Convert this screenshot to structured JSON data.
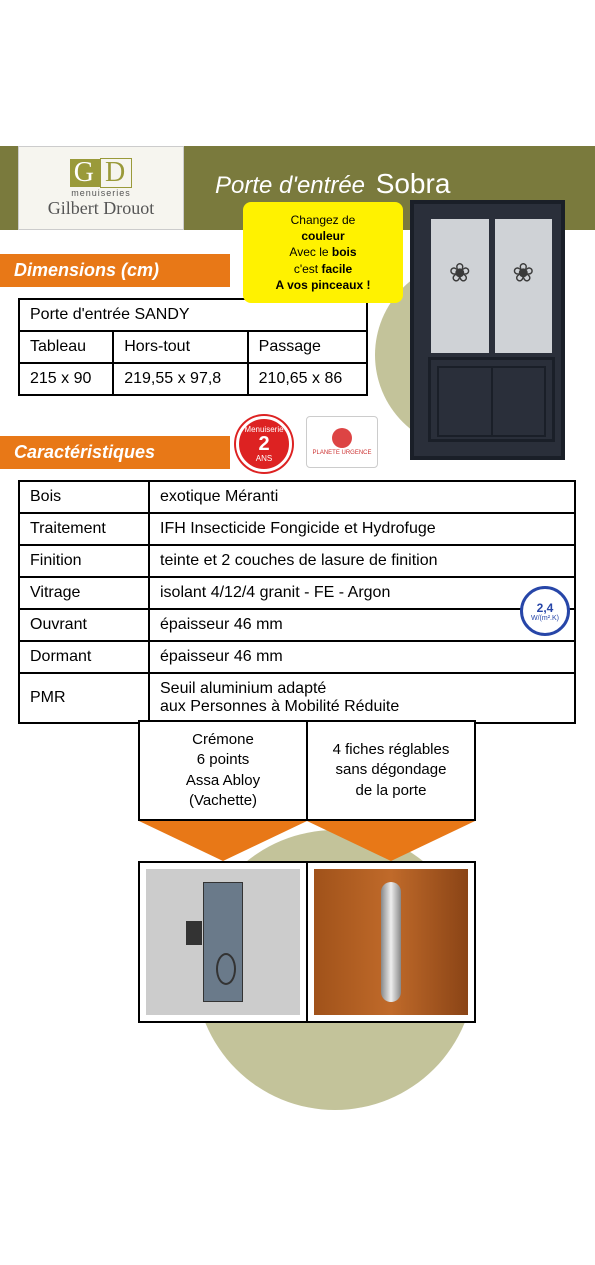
{
  "brand": {
    "initials_g": "G",
    "initials_d": "D",
    "sub": "menuiseries",
    "signature": "Gilbert Drouot"
  },
  "tagline_prefix": "Porte d'entrée",
  "tagline_model": "Sobra",
  "callout": {
    "l1": "Changez de",
    "l2": "couleur",
    "l3a": "Avec le ",
    "l3b": "bois",
    "l4a": "c'est ",
    "l4b": "facile",
    "l5": "A vos pinceaux !"
  },
  "sections": {
    "dimensions": "Dimensions (cm)",
    "carac": "Caractéristiques"
  },
  "dim_table": {
    "title": "Porte d'entrée SANDY",
    "h1": "Tableau",
    "h2": "Hors-tout",
    "h3": "Passage",
    "v1": "215 x 90",
    "v2": "219,55 x 97,8",
    "v3": "210,65 x 86"
  },
  "carac_rows": {
    "r1k": "Bois",
    "r1v": "exotique Méranti",
    "r2k": "Traitement",
    "r2v": "IFH Insecticide Fongicide et Hydrofuge",
    "r3k": "Finition",
    "r3v": "teinte et 2 couches de lasure de finition",
    "r4k": "Vitrage",
    "r4v": "isolant 4/12/4 granit - FE - Argon",
    "r5k": "Ouvrant",
    "r5v": "épaisseur 46 mm",
    "r6k": "Dormant",
    "r6v": "épaisseur 46 mm",
    "r7k": "PMR",
    "r7v": "Seuil aluminium adapté\naux Personnes à Mobilité Réduite"
  },
  "badges": {
    "menuiserie": "Menuiserie",
    "deux": "2",
    "ans": "ANS",
    "planete": "PLANETE URGENCE",
    "coef_val": "2,4",
    "coef_unit": "W/(m².K)"
  },
  "hardware": {
    "lock": "Crémone\n6 points\nAssa Abloy\n(Vachette)",
    "hinge": "4 fiches réglables\nsans dégondage\nde la porte"
  },
  "colors": {
    "olive": "#7a7a3d",
    "orange": "#e87817",
    "yellow": "#fff200",
    "circle": "#c3c39a"
  }
}
